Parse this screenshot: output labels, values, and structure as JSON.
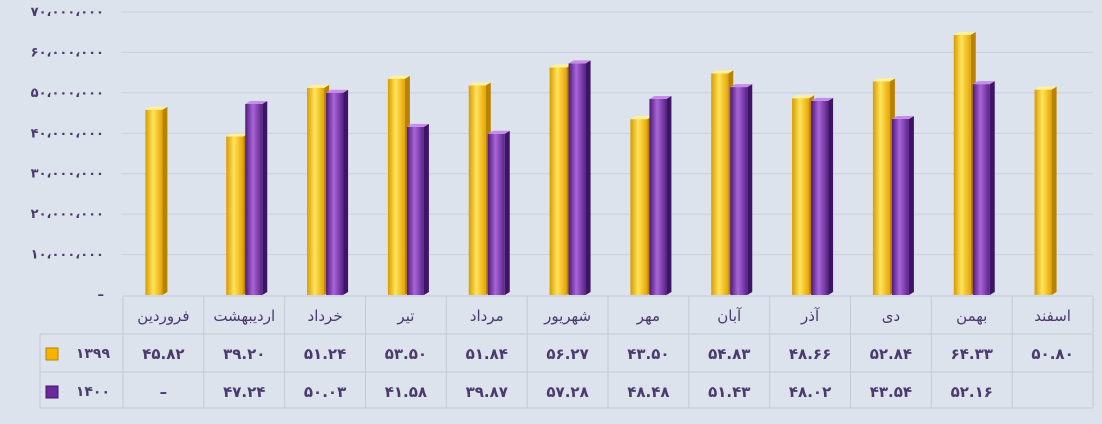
{
  "colors": {
    "series_1399": "#f5b400",
    "series_1399_light": "#ffe45c",
    "series_1400": "#6a2a9e",
    "series_1400_light": "#a865d8",
    "text": "#4a3a6e",
    "background": "#dde3ec"
  },
  "chart_data": {
    "type": "bar",
    "title": "",
    "xlabel": "",
    "ylabel": "",
    "ylim": [
      0,
      70000000
    ],
    "ytick_values": [
      0,
      10000000,
      20000000,
      30000000,
      40000000,
      50000000,
      60000000,
      70000000
    ],
    "ytick_labels": [
      "–",
      "۱۰،۰۰۰،۰۰۰",
      "۲۰،۰۰۰،۰۰۰",
      "۳۰،۰۰۰،۰۰۰",
      "۴۰،۰۰۰،۰۰۰",
      "۵۰،۰۰۰،۰۰۰",
      "۶۰،۰۰۰،۰۰۰",
      "۷۰،۰۰۰،۰۰۰"
    ],
    "categories": [
      "فروردین",
      "اردیبهشت",
      "خرداد",
      "تیر",
      "مرداد",
      "شهریور",
      "مهر",
      "آبان",
      "آذر",
      "دی",
      "بهمن",
      "اسفند"
    ],
    "series": [
      {
        "name": "۱۳۹۹",
        "values": [
          45820000,
          39200000,
          51240000,
          53500000,
          51840000,
          56270000,
          43500000,
          54830000,
          48660000,
          52840000,
          64330000,
          50800000
        ],
        "labels": [
          "۴۵.۸۲",
          "۳۹.۲۰",
          "۵۱.۲۴",
          "۵۳.۵۰",
          "۵۱.۸۴",
          "۵۶.۲۷",
          "۴۳.۵۰",
          "۵۴.۸۳",
          "۴۸.۶۶",
          "۵۲.۸۴",
          "۶۴.۳۳",
          "۵۰.۸۰"
        ]
      },
      {
        "name": "۱۴۰۰",
        "values": [
          null,
          47240000,
          50030000,
          41580000,
          39870000,
          57280000,
          48480000,
          51430000,
          48020000,
          43540000,
          52160000,
          null
        ],
        "labels": [
          "–",
          "۴۷.۲۴",
          "۵۰.۰۳",
          "۴۱.۵۸",
          "۳۹.۸۷",
          "۵۷.۲۸",
          "۴۸.۴۸",
          "۵۱.۴۳",
          "۴۸.۰۲",
          "۴۳.۵۴",
          "۵۲.۱۶",
          ""
        ]
      }
    ],
    "grid": true,
    "legend": "table-left"
  }
}
